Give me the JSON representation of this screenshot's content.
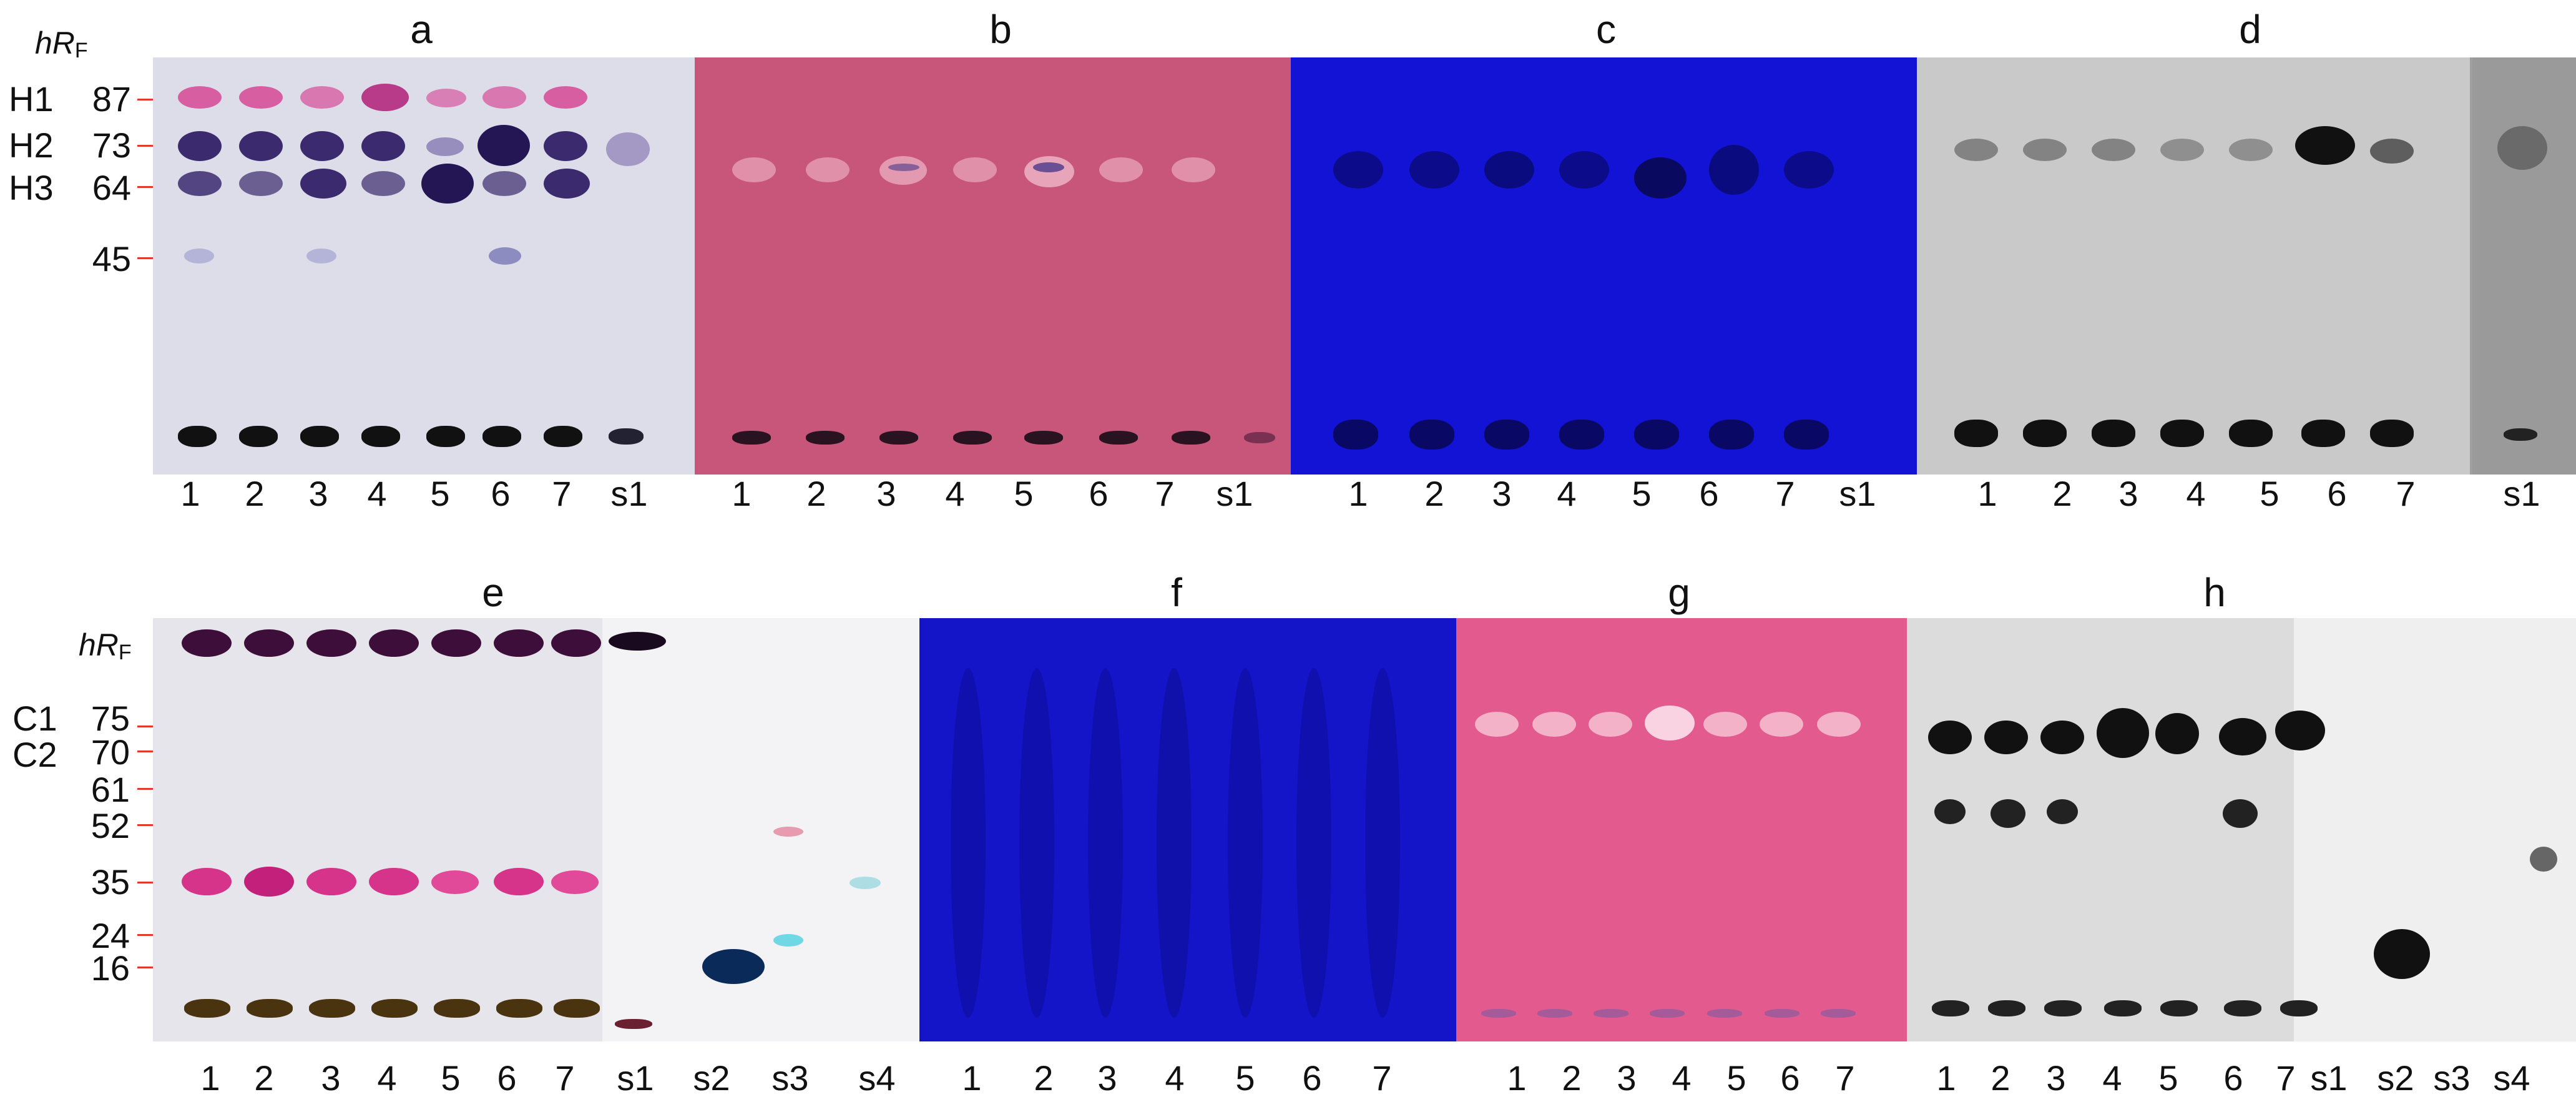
{
  "panels_top": [
    {
      "label": "a",
      "bg": "#dcdde8",
      "lanes": [
        "1",
        "2",
        "3",
        "4",
        "5",
        "6",
        "7",
        "s1"
      ]
    },
    {
      "label": "b",
      "bg": "#c7567a",
      "lanes": [
        "1",
        "2",
        "3",
        "4",
        "5",
        "6",
        "7",
        "s1"
      ]
    },
    {
      "label": "c",
      "bg": "#1313d6",
      "lanes": [
        "1",
        "2",
        "3",
        "4",
        "5",
        "6",
        "7",
        "s1"
      ]
    },
    {
      "label": "d",
      "bg": "#c9c9c9",
      "lanes": [
        "1",
        "2",
        "3",
        "4",
        "5",
        "6",
        "7",
        "s1"
      ]
    }
  ],
  "panels_bottom": [
    {
      "label": "e",
      "bg": "#f3f3f5",
      "lanes": [
        "1",
        "2",
        "3",
        "4",
        "5",
        "6",
        "7",
        "s1",
        "s2",
        "s3",
        "s4"
      ]
    },
    {
      "label": "f",
      "bg": "#1414c8",
      "lanes": [
        "1",
        "2",
        "3",
        "4",
        "5",
        "6",
        "7"
      ]
    },
    {
      "label": "g",
      "bg": "#e35a8e",
      "lanes": [
        "1",
        "2",
        "3",
        "4",
        "5",
        "6",
        "7"
      ]
    },
    {
      "label": "h",
      "bg": "#dcdcdc",
      "lanes": [
        "1",
        "2",
        "3",
        "4",
        "5",
        "6",
        "7",
        "s1",
        "s2",
        "s3",
        "s4"
      ]
    }
  ],
  "hrf_label": "hR",
  "hrf_sub": "F",
  "top_axis": {
    "components": [
      "H1",
      "H2",
      "H3"
    ],
    "rf_values": [
      "87",
      "73",
      "64",
      "45"
    ]
  },
  "bottom_axis": {
    "components": [
      "C1",
      "C2"
    ],
    "rf_values": [
      "75",
      "70",
      "61",
      "52",
      "35",
      "24",
      "16"
    ]
  },
  "colors": {
    "tick": "#e23a2a",
    "spot_purple": "#3b2a6e",
    "spot_pink": "#d6338a",
    "spot_dark": "#111111"
  }
}
